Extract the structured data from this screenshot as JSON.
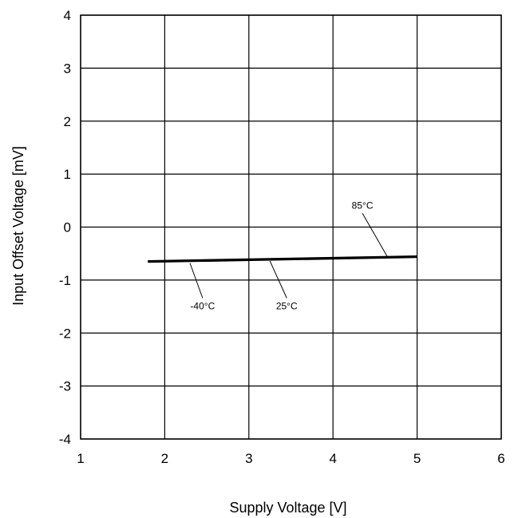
{
  "chart_data": {
    "type": "line",
    "title": "",
    "xlabel": "Supply Voltage [V]",
    "ylabel": "Input Offset Voltage [mV]",
    "xlim": [
      1,
      6
    ],
    "ylim": [
      -4,
      4
    ],
    "xticks": [
      1,
      2,
      3,
      4,
      5,
      6
    ],
    "yticks": [
      -4,
      -3,
      -2,
      -1,
      0,
      1,
      2,
      3,
      4
    ],
    "grid": true,
    "series": [
      {
        "name": "-40°C",
        "x": [
          1.8,
          5.0
        ],
        "y": [
          -0.65,
          -0.56
        ]
      },
      {
        "name": "25°C",
        "x": [
          1.8,
          5.0
        ],
        "y": [
          -0.66,
          -0.57
        ]
      },
      {
        "name": "85°C",
        "x": [
          1.8,
          5.0
        ],
        "y": [
          -0.64,
          -0.55
        ]
      }
    ],
    "annotations": [
      {
        "text": "-40°C",
        "point": [
          2.3,
          -0.68
        ],
        "label_at": [
          2.45,
          -1.55
        ]
      },
      {
        "text": "25°C",
        "point": [
          3.25,
          -0.64
        ],
        "label_at": [
          3.45,
          -1.55
        ]
      },
      {
        "text": "85°C",
        "point": [
          4.65,
          -0.57
        ],
        "label_at": [
          4.35,
          0.35
        ]
      }
    ]
  }
}
